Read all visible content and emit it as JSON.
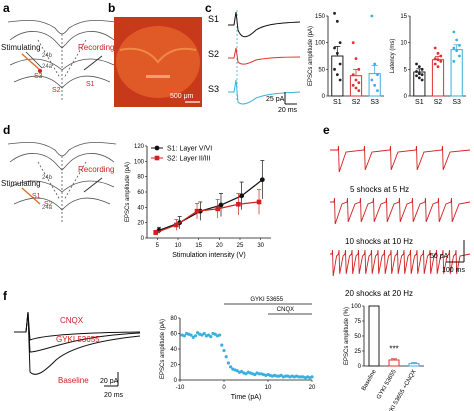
{
  "panels": {
    "a": {
      "label": "a",
      "stim": "Stimulating",
      "rec": "Recording",
      "s1": "S1",
      "s2": "S2",
      "s3": "S3",
      "l24b": "24b",
      "l24a": "24a"
    },
    "b": {
      "label": "b",
      "scale": "500 μm"
    },
    "c": {
      "label": "c",
      "traces": [
        "S1",
        "S2",
        "S3"
      ],
      "scale_pa": "25 pA",
      "scale_ms": "20 ms"
    },
    "d": {
      "label": "d",
      "stim": "Stimulating",
      "rec": "Recording",
      "s1": "S1",
      "s2": "S2",
      "l24b": "24b",
      "l24a": "24a"
    },
    "e": {
      "label": "e",
      "cap1": "5 shocks at 5 Hz",
      "cap2": "10 shocks at 10 Hz",
      "cap3": "20 shocks at 20 Hz",
      "scale_pa": "50 pA",
      "scale_ms": "100 ms"
    },
    "f": {
      "label": "f",
      "cnqx": "CNQX",
      "gyki": "GYKI 53655",
      "baseline": "Baseline",
      "scale_pa": "20 pA",
      "scale_ms": "20 ms"
    }
  },
  "chart_data": [
    {
      "id": "c_amp",
      "type": "bar",
      "ylabel": "EPSCs amplitude (pA)",
      "categories": [
        "S1",
        "S2",
        "S3"
      ],
      "values": [
        75,
        38,
        42
      ],
      "errors": [
        18,
        12,
        15
      ],
      "yticks": [
        0,
        50,
        100,
        150
      ],
      "ylim": [
        0,
        150
      ],
      "colors": [
        "#222222",
        "#e03030",
        "#3bb0e0"
      ],
      "points": [
        [
          155,
          140,
          100,
          90,
          80,
          60,
          50,
          40,
          30
        ],
        [
          100,
          70,
          50,
          40,
          30,
          25,
          20,
          15,
          10
        ],
        [
          150,
          60,
          40,
          30,
          20,
          10
        ]
      ]
    },
    {
      "id": "c_lat",
      "type": "bar",
      "ylabel": "Latency (ms)",
      "categories": [
        "S1",
        "S2",
        "S3"
      ],
      "values": [
        4.5,
        6.8,
        8.7
      ],
      "errors": [
        0.6,
        0.6,
        0.9
      ],
      "yticks": [
        0,
        5,
        10,
        15
      ],
      "ylim": [
        0,
        15
      ],
      "colors": [
        "#222222",
        "#e03030",
        "#3bb0e0"
      ],
      "points": [
        [
          6,
          5.5,
          5,
          4.6,
          4.2,
          4,
          3.8,
          3.4,
          3
        ],
        [
          9,
          8,
          7.5,
          7,
          6.8,
          6.5,
          6,
          5.5
        ],
        [
          12,
          10.5,
          9.5,
          9,
          8.5,
          7.5,
          6.5
        ]
      ]
    },
    {
      "id": "d_line",
      "type": "line",
      "xlabel": "Stimulation intensity (V)",
      "ylabel": "EPSCs amplitude (pA)",
      "x": [
        5,
        10,
        15,
        20,
        25,
        30
      ],
      "xticks": [
        5,
        10,
        15,
        20,
        25,
        30
      ],
      "yticks": [
        0,
        20,
        40,
        60,
        80,
        100,
        120
      ],
      "ylim": [
        0,
        120
      ],
      "series": [
        {
          "name": "S1: Layer V/VI",
          "color": "#111111",
          "marker": "circle",
          "values": [
            10,
            20,
            35,
            43,
            55,
            76
          ],
          "errors": [
            4,
            8,
            12,
            15,
            18,
            25
          ]
        },
        {
          "name": "S2: Layer II/III",
          "color": "#d02020",
          "marker": "square",
          "values": [
            7,
            17,
            35,
            38,
            44,
            47
          ],
          "errors": [
            3,
            7,
            10,
            12,
            14,
            16
          ]
        }
      ]
    },
    {
      "id": "f_time",
      "type": "scatter",
      "xlabel": "Time (pA)",
      "ylabel": "EPSCs amplitude (pA)",
      "xticks": [
        -10,
        0,
        10,
        20
      ],
      "xlim": [
        -10,
        20
      ],
      "yticks": [
        0,
        20,
        40,
        60,
        80
      ],
      "ylim": [
        0,
        80
      ],
      "bars": [
        {
          "label": "GYKI 53655"
        },
        {
          "label": "CNQX"
        }
      ],
      "x": [
        -9.5,
        -9,
        -8.5,
        -8,
        -7.5,
        -7,
        -6.5,
        -6,
        -5.5,
        -5,
        -4.5,
        -4,
        -3.5,
        -3,
        -2.5,
        -2,
        -1.5,
        -1,
        -0.5,
        0,
        0.5,
        1,
        1.5,
        2,
        2.5,
        3,
        3.5,
        4,
        4.5,
        5,
        5.5,
        6,
        6.5,
        7,
        7.5,
        8,
        8.5,
        9,
        9.5,
        10,
        10.5,
        11,
        11.5,
        12,
        12.5,
        13,
        13.5,
        14,
        14.5,
        15,
        15.5,
        16,
        16.5,
        17,
        17.5,
        18,
        18.5,
        19,
        19.5,
        20
      ],
      "y": [
        58,
        57,
        60,
        59,
        58,
        55,
        57,
        61,
        59,
        58,
        60,
        57,
        58,
        56,
        60,
        59,
        57,
        58,
        45,
        38,
        30,
        22,
        17,
        14,
        13,
        12,
        10,
        11,
        9,
        8,
        10,
        9,
        8,
        7,
        9,
        8,
        8,
        7,
        6,
        7,
        6,
        5,
        6,
        5,
        5,
        6,
        4,
        5,
        5,
        4,
        5,
        4,
        5,
        4,
        4,
        4,
        3,
        4,
        3,
        4
      ],
      "color": "#3bb0e0"
    },
    {
      "id": "f_bar",
      "type": "bar",
      "ylabel": "EPSCs amplitude (%)",
      "categories": [
        "Baseline",
        "GYKI 53655",
        "GYKI 53655 +CNQX"
      ],
      "values": [
        100,
        10,
        4
      ],
      "errors": [
        0,
        2,
        2
      ],
      "yticks": [
        0,
        25,
        50,
        75,
        100
      ],
      "ylim": [
        0,
        100
      ],
      "colors": [
        "#222222",
        "#e03030",
        "#3bb0e0"
      ],
      "annotation": "***"
    }
  ]
}
